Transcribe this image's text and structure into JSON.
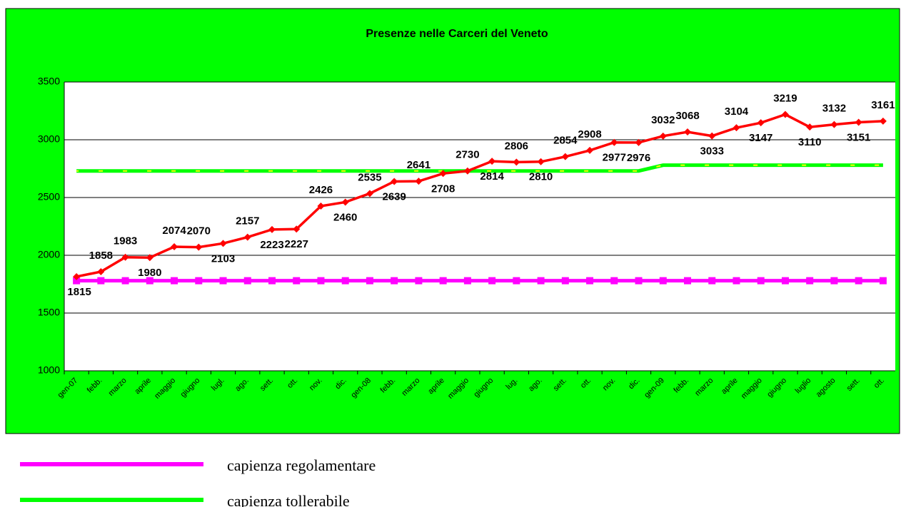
{
  "chart_data": {
    "type": "line",
    "title": "Presenze nelle Carceri del Veneto",
    "categories": [
      "gen-07",
      "febb.",
      "marzo",
      "aprile",
      "maggio",
      "giugno",
      "lugl.",
      "ago.",
      "sett.",
      "ott.",
      "nov.",
      "dic.",
      "gen-08",
      "febb.",
      "marzo",
      "aprile",
      "maggio",
      "giugno",
      "lug.",
      "ago.",
      "sett.",
      "ott.",
      "nov.",
      "dic.",
      "gen-09",
      "febb.",
      "marzo",
      "aprile",
      "maggio",
      "giugno",
      "luglio",
      "agosto",
      "sett.",
      "ott."
    ],
    "series": [
      {
        "color": "#ff0000",
        "values": [
          1815,
          1858,
          1983,
          1980,
          2074,
          2070,
          2103,
          2157,
          2223,
          2227,
          2426,
          2460,
          2535,
          2639,
          2641,
          2708,
          2730,
          2814,
          2806,
          2810,
          2854,
          2908,
          2977,
          2976,
          3032,
          3068,
          3033,
          3104,
          3147,
          3219,
          3110,
          3132,
          3151,
          3161
        ]
      },
      {
        "name": "capienza regolamentare",
        "color": "#ff00ff",
        "values": [
          1780,
          1780,
          1780,
          1780,
          1780,
          1780,
          1780,
          1780,
          1780,
          1780,
          1780,
          1780,
          1780,
          1780,
          1780,
          1780,
          1780,
          1780,
          1780,
          1780,
          1780,
          1780,
          1780,
          1780,
          1780,
          1780,
          1780,
          1780,
          1780,
          1780,
          1780,
          1780,
          1780,
          1780
        ]
      },
      {
        "name": "capienza tollerabile",
        "color": "#00ff00",
        "values": [
          2730,
          2730,
          2730,
          2730,
          2730,
          2730,
          2730,
          2730,
          2730,
          2730,
          2730,
          2730,
          2730,
          2730,
          2730,
          2730,
          2730,
          2730,
          2730,
          2730,
          2730,
          2730,
          2730,
          2730,
          2780,
          2780,
          2780,
          2780,
          2780,
          2780,
          2780,
          2780,
          2780,
          2780
        ]
      }
    ],
    "ylim": [
      1000,
      3500
    ],
    "yticks": [
      1000,
      1500,
      2000,
      2500,
      3000,
      3500
    ],
    "grid": true
  }
}
